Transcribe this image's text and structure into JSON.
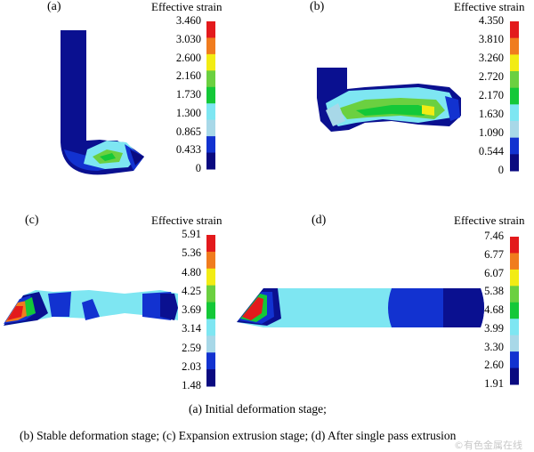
{
  "panels": [
    {
      "letter": "(a)",
      "legend_title": "Effective strain",
      "ticks": [
        "3.460",
        "3.030",
        "2.600",
        "2.160",
        "1.730",
        "1.300",
        "0.865",
        "0.433",
        "0"
      ]
    },
    {
      "letter": "(b)",
      "legend_title": "Effective strain",
      "ticks": [
        "4.350",
        "3.810",
        "3.260",
        "2.720",
        "2.170",
        "1.630",
        "1.090",
        "0.544",
        "0"
      ]
    },
    {
      "letter": "(c)",
      "legend_title": "Effective strain",
      "ticks": [
        "5.91",
        "5.36",
        "4.80",
        "4.25",
        "3.69",
        "3.14",
        "2.59",
        "2.03",
        "1.48"
      ]
    },
    {
      "letter": "(d)",
      "legend_title": "Effective strain",
      "ticks": [
        "7.46",
        "6.77",
        "6.07",
        "5.38",
        "4.68",
        "3.99",
        "3.30",
        "2.60",
        "1.91"
      ]
    }
  ],
  "colormap": [
    "#e31a1c",
    "#f07c1e",
    "#f2ec14",
    "#6bd040",
    "#14c838",
    "#7ee6f2",
    "#a8d8e8",
    "#1232d0",
    "#0a0a80"
  ],
  "caption": {
    "line1": "(a) Initial deformation stage;",
    "line2": "(b) Stable deformation stage; (c) Expansion extrusion stage; (d) After single pass extrusion"
  },
  "watermark": "©有色金属在线"
}
